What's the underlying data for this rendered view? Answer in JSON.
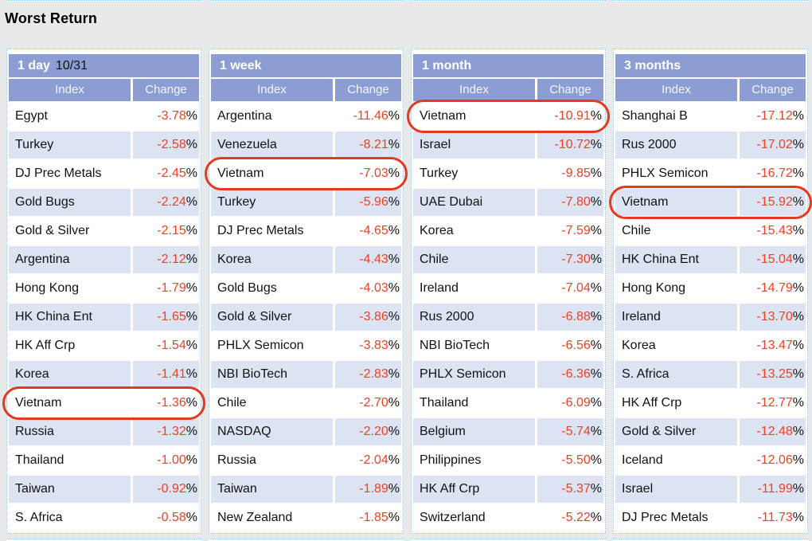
{
  "page_title": "Worst Return",
  "percent_sign": "%",
  "colors": {
    "header_bg": "#8c9dd3",
    "row_alt_bg": "#dce3f2",
    "change_value": "#ef4023",
    "highlight_ring": "#e23a1e",
    "panel_border": "#8cc6ee",
    "page_bg": "#e9e9e9"
  },
  "columns": {
    "index": "Index",
    "change": "Change"
  },
  "panels": [
    {
      "title": "1 day",
      "title_suffix": "10/31",
      "highlight_row": 10,
      "rows": [
        {
          "index": "Egypt",
          "change": "-3.78"
        },
        {
          "index": "Turkey",
          "change": "-2.58"
        },
        {
          "index": "DJ Prec Metals",
          "change": "-2.45"
        },
        {
          "index": "Gold Bugs",
          "change": "-2.24"
        },
        {
          "index": "Gold & Silver",
          "change": "-2.15"
        },
        {
          "index": "Argentina",
          "change": "-2.12"
        },
        {
          "index": "Hong Kong",
          "change": "-1.79"
        },
        {
          "index": "HK China Ent",
          "change": "-1.65"
        },
        {
          "index": "HK Aff Crp",
          "change": "-1.54"
        },
        {
          "index": "Korea",
          "change": "-1.41"
        },
        {
          "index": "Vietnam",
          "change": "-1.36"
        },
        {
          "index": "Russia",
          "change": "-1.32"
        },
        {
          "index": "Thailand",
          "change": "-1.00"
        },
        {
          "index": "Taiwan",
          "change": "-0.92"
        },
        {
          "index": "S. Africa",
          "change": "-0.58"
        }
      ]
    },
    {
      "title": "1 week",
      "title_suffix": "",
      "highlight_row": 2,
      "rows": [
        {
          "index": "Argentina",
          "change": "-11.46"
        },
        {
          "index": "Venezuela",
          "change": "-8.21"
        },
        {
          "index": "Vietnam",
          "change": "-7.03"
        },
        {
          "index": "Turkey",
          "change": "-5.96"
        },
        {
          "index": "DJ Prec Metals",
          "change": "-4.65"
        },
        {
          "index": "Korea",
          "change": "-4.43"
        },
        {
          "index": "Gold Bugs",
          "change": "-4.03"
        },
        {
          "index": "Gold & Silver",
          "change": "-3.86"
        },
        {
          "index": "PHLX Semicon",
          "change": "-3.83"
        },
        {
          "index": "NBI BioTech",
          "change": "-2.83"
        },
        {
          "index": "Chile",
          "change": "-2.70"
        },
        {
          "index": "NASDAQ",
          "change": "-2.20"
        },
        {
          "index": "Russia",
          "change": "-2.04"
        },
        {
          "index": "Taiwan",
          "change": "-1.89"
        },
        {
          "index": "New Zealand",
          "change": "-1.85"
        }
      ]
    },
    {
      "title": "1 month",
      "title_suffix": "",
      "highlight_row": 0,
      "rows": [
        {
          "index": "Vietnam",
          "change": "-10.91"
        },
        {
          "index": "Israel",
          "change": "-10.72"
        },
        {
          "index": "Turkey",
          "change": "-9.85"
        },
        {
          "index": "UAE Dubai",
          "change": "-7.80"
        },
        {
          "index": "Korea",
          "change": "-7.59"
        },
        {
          "index": "Chile",
          "change": "-7.30"
        },
        {
          "index": "Ireland",
          "change": "-7.04"
        },
        {
          "index": "Rus 2000",
          "change": "-6.88"
        },
        {
          "index": "NBI BioTech",
          "change": "-6.56"
        },
        {
          "index": "PHLX Semicon",
          "change": "-6.36"
        },
        {
          "index": "Thailand",
          "change": "-6.09"
        },
        {
          "index": "Belgium",
          "change": "-5.74"
        },
        {
          "index": "Philippines",
          "change": "-5.50"
        },
        {
          "index": "HK Aff Crp",
          "change": "-5.37"
        },
        {
          "index": "Switzerland",
          "change": "-5.22"
        }
      ]
    },
    {
      "title": "3 months",
      "title_suffix": "",
      "highlight_row": 3,
      "rows": [
        {
          "index": "Shanghai B",
          "change": "-17.12"
        },
        {
          "index": "Rus 2000",
          "change": "-17.02"
        },
        {
          "index": "PHLX Semicon",
          "change": "-16.72"
        },
        {
          "index": "Vietnam",
          "change": "-15.92"
        },
        {
          "index": "Chile",
          "change": "-15.43"
        },
        {
          "index": "HK China Ent",
          "change": "-15.04"
        },
        {
          "index": "Hong Kong",
          "change": "-14.79"
        },
        {
          "index": "Ireland",
          "change": "-13.70"
        },
        {
          "index": "Korea",
          "change": "-13.47"
        },
        {
          "index": "S. Africa",
          "change": "-13.25"
        },
        {
          "index": "HK Aff Crp",
          "change": "-12.77"
        },
        {
          "index": "Gold & Silver",
          "change": "-12.48"
        },
        {
          "index": "Iceland",
          "change": "-12.06"
        },
        {
          "index": "Israel",
          "change": "-11.99"
        },
        {
          "index": "DJ Prec Metals",
          "change": "-11.73"
        }
      ]
    }
  ]
}
